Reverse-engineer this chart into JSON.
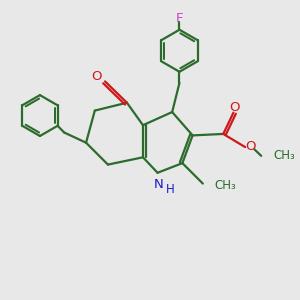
{
  "background_color": "#e8e8e8",
  "bond_color": "#2d6b2d",
  "n_color": "#1a1acc",
  "o_color": "#cc1a1a",
  "f_color": "#cc44cc",
  "lw": 1.6,
  "figsize": [
    3.0,
    3.0
  ],
  "dpi": 100,
  "xlim": [
    0,
    10
  ],
  "ylim": [
    0,
    10
  ]
}
